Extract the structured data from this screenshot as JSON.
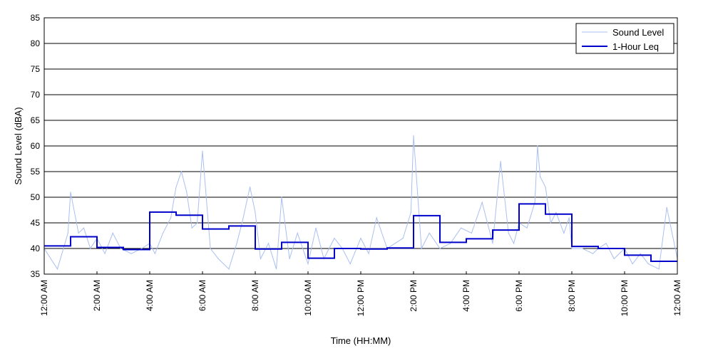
{
  "chart_data": {
    "type": "line",
    "xlabel": "Time (HH:MM)",
    "ylabel": "Sound Level (dBA)",
    "ylim": [
      35,
      85
    ],
    "xlim": [
      "12:00 AM",
      "12:00 AM (next day)"
    ],
    "x_ticks": [
      "12:00 AM",
      "2:00 AM",
      "4:00 AM",
      "6:00 AM",
      "8:00 AM",
      "10:00 AM",
      "12:00 PM",
      "2:00 PM",
      "4:00 PM",
      "6:00 PM",
      "8:00 PM",
      "10:00 PM",
      "12:00 AM"
    ],
    "y_ticks": [
      "35",
      "40",
      "45",
      "50",
      "55",
      "60",
      "65",
      "70",
      "75",
      "80",
      "85"
    ],
    "grid": "horizontal",
    "legend_position": "top-right",
    "series": [
      {
        "name": "Sound Level",
        "color": "#a9bff2",
        "style": "thin",
        "hours": [
          0,
          0.5,
          0.9,
          1.0,
          1.3,
          1.5,
          1.75,
          2.0,
          2.3,
          2.6,
          2.9,
          3.3,
          3.7,
          4.0,
          4.2,
          4.5,
          4.8,
          5.0,
          5.2,
          5.4,
          5.6,
          5.8,
          6.0,
          6.3,
          6.6,
          7.0,
          7.3,
          7.5,
          7.8,
          8.0,
          8.2,
          8.5,
          8.8,
          9.0,
          9.3,
          9.6,
          10.0,
          10.3,
          10.6,
          11.0,
          11.3,
          11.6,
          12.0,
          12.3,
          12.6,
          13.0,
          13.3,
          13.6,
          13.9,
          14.0,
          14.3,
          14.6,
          15.0,
          15.4,
          15.8,
          16.2,
          16.6,
          17.0,
          17.3,
          17.6,
          17.8,
          18.0,
          18.3,
          18.6,
          18.7,
          18.8,
          19.0,
          19.2,
          19.4,
          19.7,
          19.9,
          20.0,
          20.4,
          20.8,
          21.0,
          21.3,
          21.6,
          22.0,
          22.3,
          22.6,
          22.9,
          23.3,
          23.6,
          24.0
        ],
        "values": [
          40,
          36,
          43,
          51,
          43,
          44,
          40,
          42,
          39,
          43,
          40,
          39,
          40,
          41,
          39,
          43,
          46,
          52,
          55,
          51,
          44,
          45,
          59,
          40,
          38,
          36,
          41,
          45,
          52,
          47,
          38,
          41,
          36,
          50,
          38,
          43,
          37,
          44,
          38,
          42,
          40,
          37,
          42,
          39,
          46,
          40,
          41,
          42,
          47,
          62,
          40,
          43,
          40,
          41,
          44,
          43,
          49,
          41,
          57,
          43,
          41,
          45,
          44,
          49,
          60,
          54,
          52,
          45,
          47,
          43,
          46,
          40,
          40,
          39,
          40,
          41,
          38,
          40,
          37,
          39,
          37,
          36,
          48,
          38
        ]
      },
      {
        "name": "1-Hour Leq",
        "color": "#0000cc",
        "style": "step",
        "hours": [
          0,
          1,
          2,
          3,
          4,
          5,
          6,
          7,
          8,
          9,
          10,
          11,
          12,
          13,
          14,
          15,
          16,
          17,
          18,
          19,
          20,
          21,
          22,
          23
        ],
        "values": [
          40.5,
          42.3,
          40.2,
          39.8,
          47.1,
          46.5,
          43.8,
          44.4,
          39.9,
          41.2,
          38.1,
          40.0,
          39.9,
          40.1,
          46.4,
          41.2,
          41.9,
          43.6,
          48.7,
          46.7,
          40.4,
          40.0,
          38.7,
          37.5
        ]
      }
    ]
  }
}
